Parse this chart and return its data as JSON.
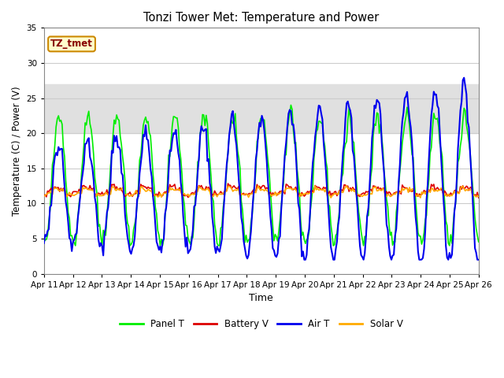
{
  "title": "Tonzi Tower Met: Temperature and Power",
  "xlabel": "Time",
  "ylabel": "Temperature (C) / Power (V)",
  "ylim": [
    0,
    35
  ],
  "yticks": [
    0,
    5,
    10,
    15,
    20,
    25,
    30,
    35
  ],
  "xtick_labels": [
    "Apr 11",
    "Apr 12",
    "Apr 13",
    "Apr 14",
    "Apr 15",
    "Apr 16",
    "Apr 17",
    "Apr 18",
    "Apr 19",
    "Apr 20",
    "Apr 21",
    "Apr 22",
    "Apr 23",
    "Apr 24",
    "Apr 25",
    "Apr 26"
  ],
  "panel_t_color": "#00ee00",
  "battery_v_color": "#dd0000",
  "air_t_color": "#0000ee",
  "solar_v_color": "#ffaa00",
  "legend_label": "TZ_tmet",
  "legend_bg": "#ffffcc",
  "legend_border": "#cc8800",
  "fig_bg_color": "#ffffff",
  "plot_bg_color": "#ffffff",
  "shaded_band_low": 20,
  "shaded_band_high": 27,
  "shaded_band_color": "#e0e0e0",
  "grid_color": "#cccccc",
  "spine_color": "#888888"
}
